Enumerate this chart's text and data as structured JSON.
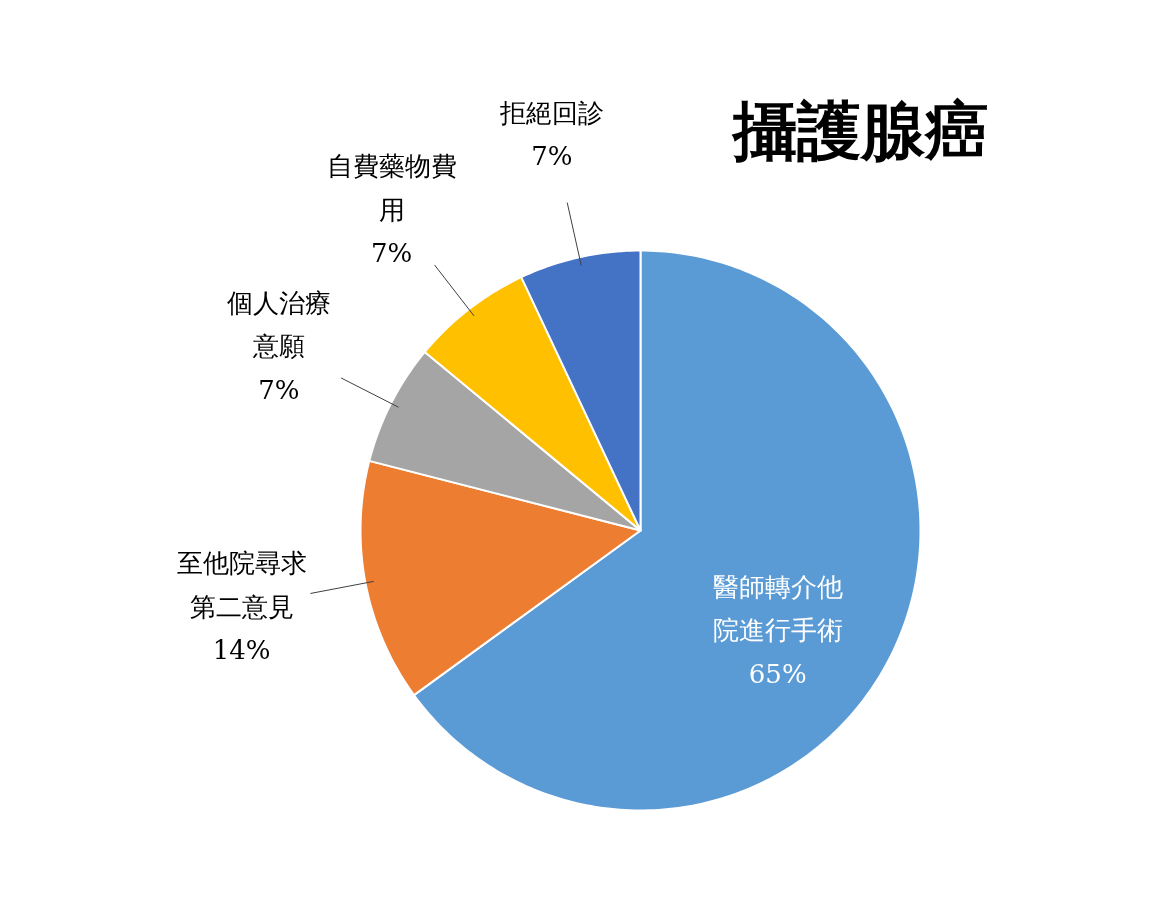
{
  "chart_data": {
    "type": "pie",
    "title": "攝護腺癌",
    "categories": [
      "醫師轉介他院進行手術",
      "至他院尋求第二意見",
      "個人治療意願",
      "自費藥物費用",
      "拒絕回診"
    ],
    "values": [
      65,
      14,
      7,
      7,
      7
    ],
    "colors": [
      "#5b9bd5",
      "#ed7d31",
      "#a5a5a5",
      "#ffc000",
      "#4472c4"
    ],
    "value_labels": [
      "65%",
      "14%",
      "7%",
      "7%",
      "7%"
    ]
  }
}
